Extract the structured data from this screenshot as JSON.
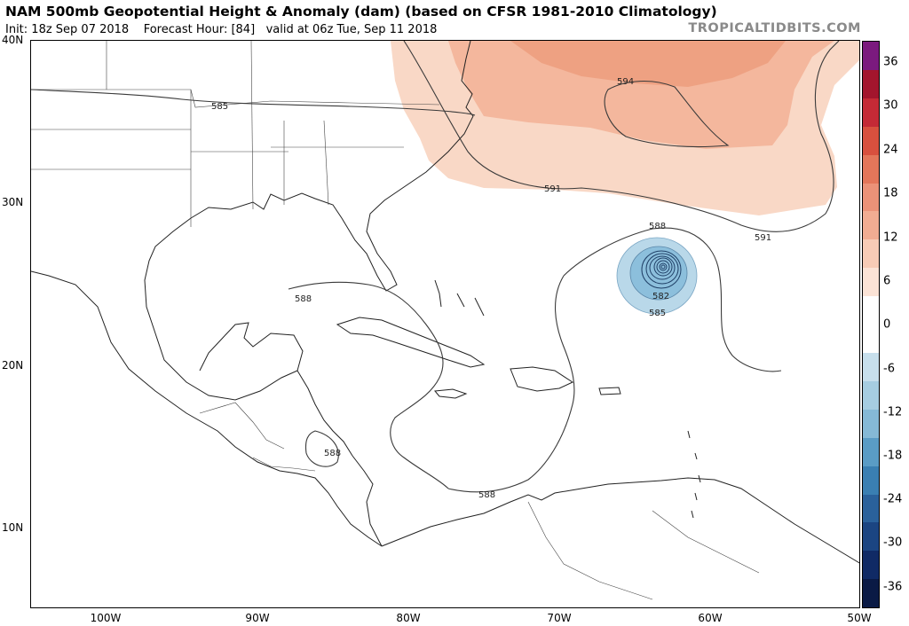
{
  "header": {
    "title": "NAM 500mb Geopotential Height & Anomaly (dam) (based on CFSR 1981-2010 Climatology)",
    "init": "Init: 18z Sep 07 2018",
    "forecast_hour": "Forecast Hour: [84]",
    "valid": "valid at 06z Tue, Sep 11 2018",
    "brand": "TROPICALTIDBITS.COM"
  },
  "axes": {
    "lat_labels": [
      "40N",
      "30N",
      "20N",
      "10N"
    ],
    "lon_labels": [
      "100W",
      "90W",
      "80W",
      "70W",
      "60W",
      "50W"
    ]
  },
  "contour_labels": [
    "585",
    "594",
    "591",
    "591",
    "588",
    "588",
    "582",
    "585",
    "588",
    "588"
  ],
  "colorbar": {
    "labels": [
      "36",
      "30",
      "24",
      "18",
      "12",
      "6",
      "0",
      "-6",
      "-12",
      "-18",
      "-24",
      "-30",
      "-36"
    ],
    "colors": [
      "#7b1a7e",
      "#a3152d",
      "#c42a36",
      "#d8503e",
      "#e3765a",
      "#eb9278",
      "#f1ac92",
      "#f7cbb6",
      "#fbe3d6",
      "#ffffff",
      "#ffffff",
      "#c7dfec",
      "#a6cde1",
      "#85b9d6",
      "#5a9cc5",
      "#3a7fb2",
      "#2a619b",
      "#1b4582",
      "#102a65",
      "#0a1a45"
    ]
  },
  "anomaly_colors": {
    "positive_light": "#f9d8c6",
    "positive_mid": "#f4b79d",
    "positive_strong": "#eea182",
    "negative_light": "#b9d8e9",
    "negative_mid": "#8cbfdc"
  }
}
